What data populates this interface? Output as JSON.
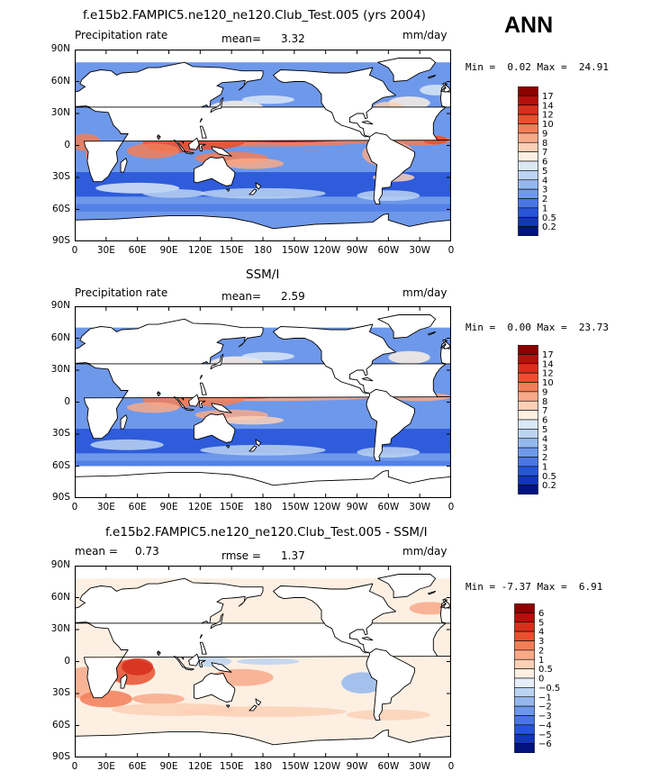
{
  "season": "ANN",
  "colors": {
    "land": "#ffffff",
    "coast": "#000000"
  },
  "panels": [
    {
      "id": "model",
      "title": "f.e15b2.FAMPIC5.ne120_ne120.Club_Test.005 (yrs 2004)",
      "left_label": "Precipitation rate",
      "mean_label": "mean=",
      "mean_value": "3.32",
      "units": "mm/day",
      "min_label": "Min =",
      "min_value": "0.02",
      "max_label": "Max =",
      "max_value": "24.91",
      "colorbar_labels": [
        "17",
        "14",
        "12",
        "10",
        "9",
        "8",
        "7",
        "6",
        "5",
        "4",
        "3",
        "2",
        "1",
        "0.5",
        "0.2"
      ],
      "colorbar_colors": [
        "#8b0000",
        "#b5100c",
        "#d62f1c",
        "#e8502f",
        "#f27e58",
        "#f8a98a",
        "#fbd0b6",
        "#fdf0e3",
        "#dbe8f7",
        "#bcd3f2",
        "#94b8ee",
        "#6e98ea",
        "#4a76e4",
        "#2755d9",
        "#1236b8",
        "#02137f"
      ]
    },
    {
      "id": "obs",
      "title": "SSM/I",
      "left_label": "Precipitation rate",
      "mean_label": "mean=",
      "mean_value": "2.59",
      "units": "mm/day",
      "min_label": "Min =",
      "min_value": "0.00",
      "max_label": "Max =",
      "max_value": "23.73",
      "colorbar_labels": [
        "17",
        "14",
        "12",
        "10",
        "9",
        "8",
        "7",
        "6",
        "5",
        "4",
        "3",
        "2",
        "1",
        "0.5",
        "0.2"
      ],
      "colorbar_colors": [
        "#8b0000",
        "#b5100c",
        "#d62f1c",
        "#e8502f",
        "#f27e58",
        "#f8a98a",
        "#fbd0b6",
        "#fdf0e3",
        "#dbe8f7",
        "#bcd3f2",
        "#94b8ee",
        "#6e98ea",
        "#4a76e4",
        "#2755d9",
        "#1236b8",
        "#02137f"
      ]
    },
    {
      "id": "diff",
      "title": "f.e15b2.FAMPIC5.ne120_ne120.Club_Test.005 - SSM/I",
      "left_label": "mean =",
      "left_value": "0.73",
      "rmse_label": "rmse =",
      "rmse_value": "1.37",
      "units": "mm/day",
      "min_label": "Min =",
      "min_value": "-7.37",
      "max_label": "Max =",
      "max_value": "6.91",
      "colorbar_labels": [
        "6",
        "5",
        "4",
        "3",
        "2",
        "1",
        "0.5",
        "0",
        "−0.5",
        "−1",
        "−2",
        "−3",
        "−4",
        "−5",
        "−6"
      ],
      "colorbar_colors": [
        "#8b0000",
        "#b5100c",
        "#d62f1c",
        "#e8502f",
        "#f27e58",
        "#f8a98a",
        "#fbd0b6",
        "#fdf0e3",
        "#e6eefa",
        "#bcd3f2",
        "#94b8ee",
        "#6e98ea",
        "#4a76e4",
        "#2755d9",
        "#1236b8",
        "#02137f"
      ]
    }
  ],
  "lat_labels": [
    "90N",
    "60N",
    "30N",
    "0",
    "30S",
    "60S",
    "90S"
  ],
  "lon_labels": [
    "0",
    "30E",
    "60E",
    "90E",
    "120E",
    "150E",
    "180",
    "150W",
    "120W",
    "90W",
    "60W",
    "30W",
    "0"
  ]
}
